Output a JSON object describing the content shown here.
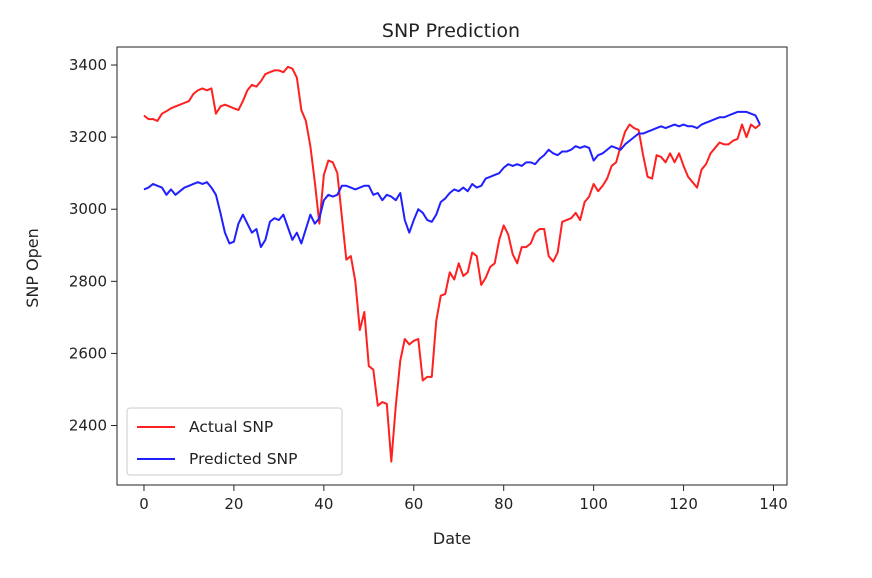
{
  "chart_data": {
    "type": "line",
    "title": "SNP Prediction",
    "xlabel": "Date",
    "ylabel": "SNP Open",
    "xlim": [
      -6,
      143
    ],
    "ylim": [
      2235,
      3450
    ],
    "x_ticks": [
      0,
      20,
      40,
      60,
      80,
      100,
      120,
      140
    ],
    "y_ticks": [
      2400,
      2600,
      2800,
      3000,
      3200,
      3400
    ],
    "grid": false,
    "legend_position": "lower-left",
    "series": [
      {
        "name": "Actual SNP",
        "color": "#ff2020",
        "points": [
          [
            0,
            3260
          ],
          [
            1,
            3250
          ],
          [
            2,
            3250
          ],
          [
            3,
            3245
          ],
          [
            4,
            3265
          ],
          [
            5,
            3272
          ],
          [
            6,
            3280
          ],
          [
            7,
            3285
          ],
          [
            8,
            3290
          ],
          [
            9,
            3295
          ],
          [
            10,
            3300
          ],
          [
            11,
            3320
          ],
          [
            12,
            3330
          ],
          [
            13,
            3335
          ],
          [
            14,
            3330
          ],
          [
            15,
            3335
          ],
          [
            16,
            3265
          ],
          [
            17,
            3285
          ],
          [
            18,
            3290
          ],
          [
            19,
            3285
          ],
          [
            20,
            3280
          ],
          [
            21,
            3275
          ],
          [
            22,
            3300
          ],
          [
            23,
            3330
          ],
          [
            24,
            3345
          ],
          [
            25,
            3340
          ],
          [
            26,
            3355
          ],
          [
            27,
            3375
          ],
          [
            28,
            3380
          ],
          [
            29,
            3385
          ],
          [
            30,
            3385
          ],
          [
            31,
            3380
          ],
          [
            32,
            3395
          ],
          [
            33,
            3390
          ],
          [
            34,
            3365
          ],
          [
            35,
            3275
          ],
          [
            36,
            3245
          ],
          [
            37,
            3175
          ],
          [
            38,
            3075
          ],
          [
            39,
            2960
          ],
          [
            40,
            3095
          ],
          [
            41,
            3135
          ],
          [
            42,
            3130
          ],
          [
            43,
            3100
          ],
          [
            44,
            2980
          ],
          [
            45,
            2860
          ],
          [
            46,
            2870
          ],
          [
            47,
            2800
          ],
          [
            48,
            2665
          ],
          [
            49,
            2715
          ],
          [
            50,
            2565
          ],
          [
            51,
            2555
          ],
          [
            52,
            2455
          ],
          [
            53,
            2465
          ],
          [
            54,
            2460
          ],
          [
            55,
            2300
          ],
          [
            56,
            2455
          ],
          [
            57,
            2580
          ],
          [
            58,
            2640
          ],
          [
            59,
            2625
          ],
          [
            60,
            2635
          ],
          [
            61,
            2640
          ],
          [
            62,
            2525
          ],
          [
            63,
            2535
          ],
          [
            64,
            2535
          ],
          [
            65,
            2690
          ],
          [
            66,
            2760
          ],
          [
            67,
            2765
          ],
          [
            68,
            2825
          ],
          [
            69,
            2805
          ],
          [
            70,
            2850
          ],
          [
            71,
            2815
          ],
          [
            72,
            2825
          ],
          [
            73,
            2880
          ],
          [
            74,
            2870
          ],
          [
            75,
            2790
          ],
          [
            76,
            2810
          ],
          [
            77,
            2840
          ],
          [
            78,
            2850
          ],
          [
            79,
            2915
          ],
          [
            80,
            2955
          ],
          [
            81,
            2930
          ],
          [
            82,
            2875
          ],
          [
            83,
            2850
          ],
          [
            84,
            2895
          ],
          [
            85,
            2895
          ],
          [
            86,
            2905
          ],
          [
            87,
            2935
          ],
          [
            88,
            2945
          ],
          [
            89,
            2945
          ],
          [
            90,
            2870
          ],
          [
            91,
            2855
          ],
          [
            92,
            2880
          ],
          [
            93,
            2965
          ],
          [
            94,
            2970
          ],
          [
            95,
            2975
          ],
          [
            96,
            2990
          ],
          [
            97,
            2970
          ],
          [
            98,
            3020
          ],
          [
            99,
            3035
          ],
          [
            100,
            3070
          ],
          [
            101,
            3050
          ],
          [
            102,
            3065
          ],
          [
            103,
            3085
          ],
          [
            104,
            3120
          ],
          [
            105,
            3130
          ],
          [
            106,
            3175
          ],
          [
            107,
            3215
          ],
          [
            108,
            3235
          ],
          [
            109,
            3225
          ],
          [
            110,
            3220
          ],
          [
            111,
            3150
          ],
          [
            112,
            3090
          ],
          [
            113,
            3085
          ],
          [
            114,
            3150
          ],
          [
            115,
            3145
          ],
          [
            116,
            3130
          ],
          [
            117,
            3155
          ],
          [
            118,
            3130
          ],
          [
            119,
            3155
          ],
          [
            120,
            3120
          ],
          [
            121,
            3090
          ],
          [
            122,
            3075
          ],
          [
            123,
            3060
          ],
          [
            124,
            3110
          ],
          [
            125,
            3125
          ],
          [
            126,
            3155
          ],
          [
            127,
            3170
          ],
          [
            128,
            3185
          ],
          [
            129,
            3180
          ],
          [
            130,
            3180
          ],
          [
            131,
            3190
          ],
          [
            132,
            3195
          ],
          [
            133,
            3235
          ],
          [
            134,
            3200
          ],
          [
            135,
            3235
          ],
          [
            136,
            3225
          ],
          [
            137,
            3235
          ]
        ]
      },
      {
        "name": "Predicted SNP",
        "color": "#2020ff",
        "points": [
          [
            0,
            3055
          ],
          [
            1,
            3060
          ],
          [
            2,
            3070
          ],
          [
            3,
            3065
          ],
          [
            4,
            3060
          ],
          [
            5,
            3040
          ],
          [
            6,
            3055
          ],
          [
            7,
            3040
          ],
          [
            8,
            3050
          ],
          [
            9,
            3060
          ],
          [
            10,
            3065
          ],
          [
            11,
            3070
          ],
          [
            12,
            3075
          ],
          [
            13,
            3070
          ],
          [
            14,
            3075
          ],
          [
            15,
            3060
          ],
          [
            16,
            3040
          ],
          [
            17,
            2990
          ],
          [
            18,
            2935
          ],
          [
            19,
            2905
          ],
          [
            20,
            2910
          ],
          [
            21,
            2960
          ],
          [
            22,
            2985
          ],
          [
            23,
            2960
          ],
          [
            24,
            2935
          ],
          [
            25,
            2945
          ],
          [
            26,
            2895
          ],
          [
            27,
            2915
          ],
          [
            28,
            2965
          ],
          [
            29,
            2975
          ],
          [
            30,
            2970
          ],
          [
            31,
            2985
          ],
          [
            32,
            2950
          ],
          [
            33,
            2915
          ],
          [
            34,
            2935
          ],
          [
            35,
            2905
          ],
          [
            36,
            2945
          ],
          [
            37,
            2985
          ],
          [
            38,
            2960
          ],
          [
            39,
            2975
          ],
          [
            40,
            3025
          ],
          [
            41,
            3040
          ],
          [
            42,
            3035
          ],
          [
            43,
            3040
          ],
          [
            44,
            3065
          ],
          [
            45,
            3065
          ],
          [
            46,
            3060
          ],
          [
            47,
            3055
          ],
          [
            48,
            3060
          ],
          [
            49,
            3065
          ],
          [
            50,
            3065
          ],
          [
            51,
            3040
          ],
          [
            52,
            3045
          ],
          [
            53,
            3025
          ],
          [
            54,
            3040
          ],
          [
            55,
            3035
          ],
          [
            56,
            3025
          ],
          [
            57,
            3045
          ],
          [
            58,
            2970
          ],
          [
            59,
            2935
          ],
          [
            60,
            2970
          ],
          [
            61,
            3000
          ],
          [
            62,
            2990
          ],
          [
            63,
            2970
          ],
          [
            64,
            2965
          ],
          [
            65,
            2985
          ],
          [
            66,
            3020
          ],
          [
            67,
            3030
          ],
          [
            68,
            3045
          ],
          [
            69,
            3055
          ],
          [
            70,
            3050
          ],
          [
            71,
            3060
          ],
          [
            72,
            3050
          ],
          [
            73,
            3070
          ],
          [
            74,
            3060
          ],
          [
            75,
            3065
          ],
          [
            76,
            3085
          ],
          [
            77,
            3090
          ],
          [
            78,
            3095
          ],
          [
            79,
            3100
          ],
          [
            80,
            3115
          ],
          [
            81,
            3125
          ],
          [
            82,
            3120
          ],
          [
            83,
            3125
          ],
          [
            84,
            3120
          ],
          [
            85,
            3130
          ],
          [
            86,
            3130
          ],
          [
            87,
            3125
          ],
          [
            88,
            3140
          ],
          [
            89,
            3150
          ],
          [
            90,
            3165
          ],
          [
            91,
            3155
          ],
          [
            92,
            3150
          ],
          [
            93,
            3160
          ],
          [
            94,
            3160
          ],
          [
            95,
            3165
          ],
          [
            96,
            3175
          ],
          [
            97,
            3170
          ],
          [
            98,
            3175
          ],
          [
            99,
            3170
          ],
          [
            100,
            3135
          ],
          [
            101,
            3150
          ],
          [
            102,
            3155
          ],
          [
            103,
            3165
          ],
          [
            104,
            3175
          ],
          [
            105,
            3170
          ],
          [
            106,
            3165
          ],
          [
            107,
            3180
          ],
          [
            108,
            3190
          ],
          [
            109,
            3200
          ],
          [
            110,
            3210
          ],
          [
            111,
            3210
          ],
          [
            112,
            3215
          ],
          [
            113,
            3220
          ],
          [
            114,
            3225
          ],
          [
            115,
            3230
          ],
          [
            116,
            3225
          ],
          [
            117,
            3230
          ],
          [
            118,
            3235
          ],
          [
            119,
            3230
          ],
          [
            120,
            3235
          ],
          [
            121,
            3230
          ],
          [
            122,
            3230
          ],
          [
            123,
            3225
          ],
          [
            124,
            3235
          ],
          [
            125,
            3240
          ],
          [
            126,
            3245
          ],
          [
            127,
            3250
          ],
          [
            128,
            3255
          ],
          [
            129,
            3255
          ],
          [
            130,
            3260
          ],
          [
            131,
            3265
          ],
          [
            132,
            3270
          ],
          [
            133,
            3270
          ],
          [
            134,
            3270
          ],
          [
            135,
            3265
          ],
          [
            136,
            3260
          ],
          [
            137,
            3235
          ]
        ]
      }
    ]
  }
}
